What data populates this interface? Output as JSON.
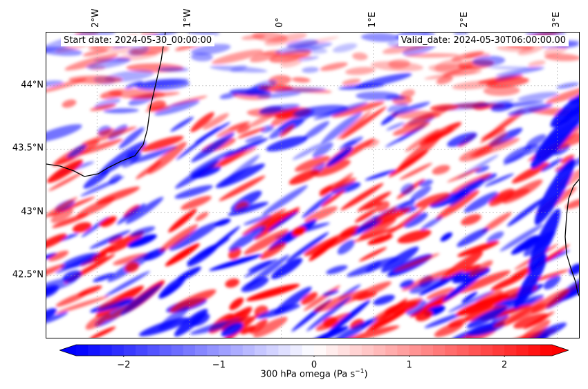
{
  "map": {
    "start_date": "Start date: 2024-05-30_00:00:00",
    "valid_date": "Valid_date: 2024-05-30T06:00:00.00",
    "lon_labels": [
      "2°W",
      "1°W",
      "0°",
      "1°E",
      "2°E",
      "3°E"
    ],
    "lon_values": [
      -2,
      -1,
      0,
      1,
      2,
      3
    ],
    "lat_labels": [
      "44°N",
      "43.5°N",
      "43°N",
      "42.5°N"
    ],
    "lat_values": [
      44,
      43.5,
      43,
      42.5
    ],
    "extent": {
      "lon_min": -2.55,
      "lon_max": 3.25,
      "lat_min": 42.0,
      "lat_max": 44.42
    },
    "field": "300 hPa omega",
    "colormap": {
      "negative": "#0000ff",
      "zero": "#ffffff",
      "positive": "#ff0000"
    },
    "coastline_color": "#000000",
    "gridlines": true
  },
  "colorbar": {
    "title": "300 hPa omega (Pa s",
    "title_exp": "−1",
    "title_end": ")",
    "tick_labels": [
      "−2",
      "−1",
      "0",
      "1",
      "2"
    ],
    "tick_values": [
      -2,
      -1,
      0,
      1,
      2
    ],
    "range": [
      -2.5,
      2.5
    ],
    "extend": "both"
  }
}
